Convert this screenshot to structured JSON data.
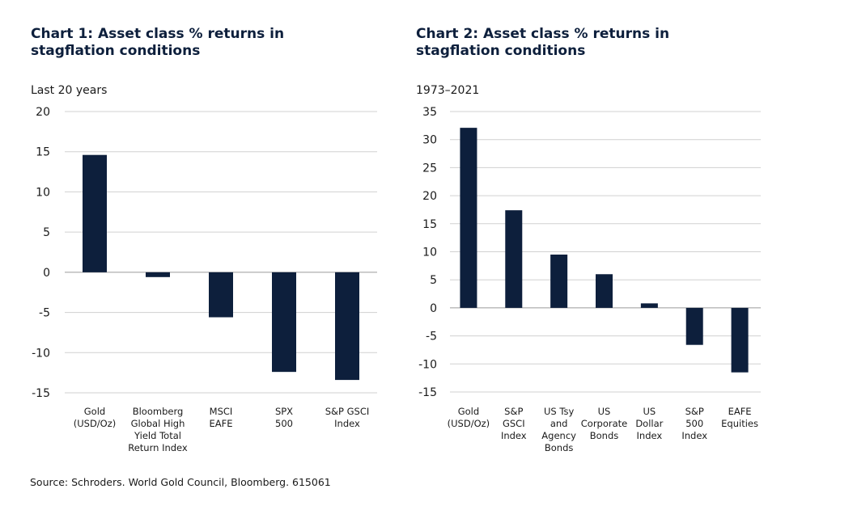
{
  "chart_data": [
    {
      "type": "bar",
      "title": "Chart 1: Asset class % returns in stagflation conditions",
      "subtitle": "Last 20 years",
      "categories": [
        "Gold\n(USD/Oz)",
        "Bloomberg\nGlobal High\nYield Total\nReturn Index",
        "MSCI\nEAFE",
        "SPX\n500",
        "S&P GSCI\nIndex"
      ],
      "values": [
        14.6,
        -0.6,
        -5.6,
        -12.4,
        -13.4
      ],
      "ylim": [
        -15,
        20
      ],
      "yticks": [
        20,
        15,
        10,
        5,
        0,
        -5,
        -10,
        -15
      ],
      "grid": true,
      "bar_color": "#0d1f3c"
    },
    {
      "type": "bar",
      "title": "Chart 2: Asset class % returns in stagflation conditions",
      "subtitle": "1973–2021",
      "categories": [
        "Gold\n(USD/Oz)",
        "S&P\nGSCI\nIndex",
        "US Tsy\nand\nAgency\nBonds",
        "US\nCorporate\nBonds",
        "US\nDollar\nIndex",
        "S&P\n500\nIndex",
        "EAFE\nEquities"
      ],
      "values": [
        32.1,
        17.4,
        9.5,
        6.0,
        0.8,
        -6.6,
        -11.5
      ],
      "ylim": [
        -15,
        35
      ],
      "yticks": [
        35,
        30,
        25,
        20,
        15,
        10,
        5,
        0,
        -5,
        -10,
        -15
      ],
      "grid": true,
      "bar_color": "#0d1f3c"
    }
  ],
  "source": "Source: Schroders. World Gold Council, Bloomberg. 615061"
}
